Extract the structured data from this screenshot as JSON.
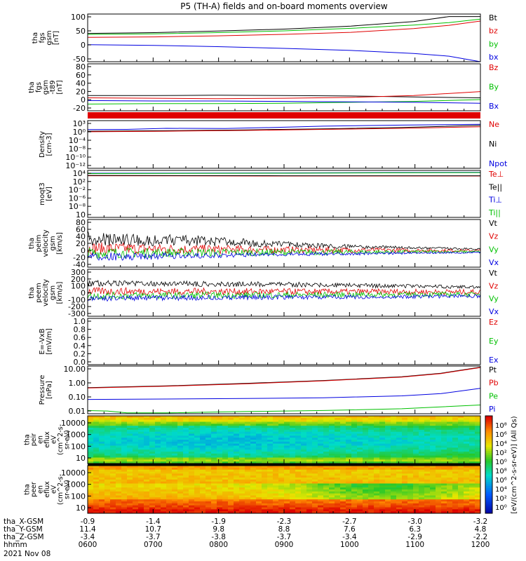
{
  "title": "P5 (TH-A) fields and on-board moments overview",
  "date": "2021 Nov 08",
  "colors": {
    "black": "#000000",
    "red": "#e00000",
    "green": "#00c000",
    "blue": "#0000e0"
  },
  "chart_data": {
    "type": "line",
    "x_ticks": [
      "0600",
      "0700",
      "0800",
      "0900",
      "1000",
      "1100",
      "1200"
    ],
    "panels": [
      {
        "id": "fgs",
        "ylabel": [
          "tha",
          "fgs",
          "gsm",
          "[nT]"
        ],
        "yticks": [
          "100",
          "50",
          "0",
          "-50"
        ],
        "ylim": [
          -80,
          110
        ],
        "legend": [
          {
            "t": "Bt",
            "c": "black"
          },
          {
            "t": "bz",
            "c": "red"
          },
          {
            "t": "by",
            "c": "green"
          },
          {
            "t": "bx",
            "c": "blue"
          }
        ],
        "series": [
          {
            "name": "Bt",
            "color": "black",
            "x": [
              0,
              0.17,
              0.33,
              0.5,
              0.67,
              0.83,
              0.92,
              1
            ],
            "y": [
              33,
              36,
              42,
              50,
              62,
              80,
              100,
              100
            ]
          },
          {
            "name": "bz",
            "color": "red",
            "x": [
              0,
              0.17,
              0.33,
              0.5,
              0.67,
              0.83,
              0.92,
              1
            ],
            "y": [
              17,
              19,
              23,
              29,
              37,
              52,
              65,
              82
            ]
          },
          {
            "name": "by",
            "color": "green",
            "x": [
              0,
              0.17,
              0.33,
              0.5,
              0.67,
              0.83,
              0.92,
              1
            ],
            "y": [
              29,
              31,
              36,
              43,
              53,
              66,
              76,
              90
            ]
          },
          {
            "name": "bx",
            "color": "blue",
            "x": [
              0,
              0.17,
              0.33,
              0.5,
              0.67,
              0.83,
              0.92,
              1
            ],
            "y": [
              -12,
              -15,
              -20,
              -27,
              -35,
              -47,
              -58,
              -80
            ]
          }
        ]
      },
      {
        "id": "fgs-dsl",
        "ylabel": [
          "tha",
          "fgs",
          "gsm",
          "-t89",
          "[nT]"
        ],
        "yticks": [
          "80",
          "60",
          "40",
          "20",
          "0",
          "-20"
        ],
        "ylim": [
          -25,
          80
        ],
        "legend": [
          {
            "t": "Bz",
            "c": "red"
          },
          {
            "t": "By",
            "c": "green"
          },
          {
            "t": "Bx",
            "c": "blue"
          }
        ],
        "series": [
          {
            "name": "Bt",
            "color": "black",
            "x": [
              0,
              0.17,
              0.33,
              0.5,
              0.67,
              0.83,
              1
            ],
            "y": [
              9,
              9,
              10,
              9,
              8,
              6,
              4
            ]
          },
          {
            "name": "Bz",
            "color": "red",
            "x": [
              0,
              0.17,
              0.33,
              0.5,
              0.67,
              0.83,
              1
            ],
            "y": [
              4,
              3,
              2,
              3,
              5,
              9,
              18
            ]
          },
          {
            "name": "By",
            "color": "green",
            "x": [
              0,
              0.17,
              0.33,
              0.5,
              0.67,
              0.83,
              1
            ],
            "y": [
              -10,
              -9,
              -9,
              -8,
              -6,
              -4,
              0
            ]
          },
          {
            "name": "Bx",
            "color": "blue",
            "x": [
              0,
              0.17,
              0.33,
              0.5,
              0.67,
              0.83,
              1
            ],
            "y": [
              -2,
              -3,
              -3,
              -4,
              -5,
              -6,
              -8
            ]
          }
        ]
      },
      {
        "id": "density",
        "ylabel": [
          "Density",
          "[cm-3]"
        ],
        "yticks": [
          "10³",
          "10⁰",
          "10⁻⁴",
          "10⁻⁸",
          "10⁻¹⁰",
          "10⁻¹²"
        ],
        "ylim": [
          -14,
          4
        ],
        "legend": [
          {
            "t": "Ne",
            "c": "red"
          },
          {
            "t": "Ni",
            "c": "black"
          },
          {
            "t": "Npot",
            "c": "blue"
          }
        ],
        "series": [
          {
            "name": "Npot",
            "color": "blue",
            "x": [
              0,
              0.1,
              0.2,
              0.35,
              0.5,
              0.6,
              0.8,
              1
            ],
            "y": [
              0.6,
              0.7,
              1.1,
              1.0,
              1.5,
              1.9,
              2.3,
              2.6
            ]
          },
          {
            "name": "Ni",
            "color": "black",
            "x": [
              0,
              0.2,
              0.4,
              0.6,
              0.8,
              1
            ],
            "y": [
              0.0,
              0.2,
              0.5,
              0.9,
              1.4,
              2.2
            ]
          },
          {
            "name": "Ne",
            "color": "red",
            "x": [
              0,
              0.2,
              0.4,
              0.6,
              0.8,
              1
            ],
            "y": [
              -0.2,
              0.0,
              0.3,
              0.7,
              1.1,
              1.7
            ]
          }
        ]
      },
      {
        "id": "temp",
        "ylabel": [
          "moqt3",
          "[eV]"
        ],
        "yticks": [
          "10⁴",
          "10²",
          "10⁻²",
          "10⁻⁶",
          "10⁻⁸",
          "10"
        ],
        "ylim": [
          -10,
          5
        ],
        "legend": [
          {
            "t": "Te⊥",
            "c": "red"
          },
          {
            "t": "Te||",
            "c": "black"
          },
          {
            "t": "Ti⊥",
            "c": "blue"
          },
          {
            "t": "Ti||",
            "c": "green"
          }
        ],
        "series": [
          {
            "name": "Te⊥",
            "color": "red",
            "x": [
              0,
              0.5,
              1
            ],
            "y": [
              3.3,
              3.2,
              3.2
            ]
          },
          {
            "name": "Te||",
            "color": "black",
            "x": [
              0,
              0.5,
              1
            ],
            "y": [
              3.4,
              3.3,
              3.3
            ]
          },
          {
            "name": "Ti⊥",
            "color": "blue",
            "x": [
              0,
              0.5,
              1
            ],
            "y": [
              4.1,
              4.2,
              4.4
            ]
          },
          {
            "name": "Ti||",
            "color": "green",
            "x": [
              0,
              0.5,
              1
            ],
            "y": [
              4.0,
              4.1,
              4.3
            ]
          }
        ]
      },
      {
        "id": "peim",
        "ylabel": [
          "tha",
          "peim",
          "velocity",
          "gsm",
          "[km/s]"
        ],
        "yticks": [
          "80",
          "60",
          "40",
          "20",
          "0",
          "-20",
          "-40"
        ],
        "ylim": [
          -45,
          90
        ],
        "legend": [
          {
            "t": "Vt",
            "c": "black"
          },
          {
            "t": "Vz",
            "c": "red"
          },
          {
            "t": "Vy",
            "c": "green"
          },
          {
            "t": "Vx",
            "c": "blue"
          }
        ],
        "noisy": true,
        "series": [
          {
            "name": "Vt",
            "color": "black",
            "base": [
              [
                0,
                22
              ],
              [
                0.3,
                20
              ],
              [
                0.55,
                12
              ],
              [
                0.75,
                8
              ],
              [
                1,
                5
              ]
            ],
            "amp": [
              [
                0,
                40
              ],
              [
                0.3,
                25
              ],
              [
                0.6,
                12
              ],
              [
                1,
                4
              ]
            ],
            "sign": 1
          },
          {
            "name": "Vz",
            "color": "red",
            "base": [
              [
                0,
                8
              ],
              [
                0.5,
                4
              ],
              [
                1,
                2
              ]
            ],
            "amp": [
              [
                0,
                18
              ],
              [
                0.5,
                10
              ],
              [
                1,
                3
              ]
            ],
            "sign": 0
          },
          {
            "name": "Vy",
            "color": "green",
            "base": [
              [
                0,
                -5
              ],
              [
                0.5,
                -3
              ],
              [
                1,
                -1
              ]
            ],
            "amp": [
              [
                0,
                16
              ],
              [
                0.5,
                9
              ],
              [
                1,
                3
              ]
            ],
            "sign": 0
          },
          {
            "name": "Vx",
            "color": "blue",
            "base": [
              [
                0,
                -8
              ],
              [
                0.5,
                -5
              ],
              [
                1,
                -2
              ]
            ],
            "amp": [
              [
                0,
                22
              ],
              [
                0.5,
                10
              ],
              [
                1,
                4
              ]
            ],
            "sign": -1
          }
        ]
      },
      {
        "id": "peem",
        "ylabel": [
          "tha",
          "peem",
          "velocity",
          "gsm",
          "[km/s]"
        ],
        "yticks": [
          "300",
          "200",
          "100",
          "0",
          "-100",
          "-200",
          "-300"
        ],
        "ylim": [
          -310,
          310
        ],
        "legend": [
          {
            "t": "Vt",
            "c": "black"
          },
          {
            "t": "Vz",
            "c": "red"
          },
          {
            "t": "Vy",
            "c": "green"
          },
          {
            "t": "Vx",
            "c": "blue"
          }
        ],
        "noisy": true,
        "series": [
          {
            "name": "Vt",
            "color": "black",
            "base": [
              [
                0,
                100
              ],
              [
                0.5,
                90
              ],
              [
                1,
                60
              ]
            ],
            "amp": [
              [
                0,
                70
              ],
              [
                0.5,
                60
              ],
              [
                1,
                40
              ]
            ],
            "sign": 1
          },
          {
            "name": "Vz",
            "color": "red",
            "base": [
              [
                0,
                20
              ],
              [
                1,
                10
              ]
            ],
            "amp": [
              [
                0,
                50
              ],
              [
                1,
                35
              ]
            ],
            "sign": 0
          },
          {
            "name": "Vy",
            "color": "green",
            "base": [
              [
                0,
                -40
              ],
              [
                1,
                -20
              ]
            ],
            "amp": [
              [
                0,
                50
              ],
              [
                1,
                30
              ]
            ],
            "sign": 0
          },
          {
            "name": "Vx",
            "color": "blue",
            "base": [
              [
                0,
                -50
              ],
              [
                1,
                -30
              ]
            ],
            "amp": [
              [
                0,
                70
              ],
              [
                1,
                40
              ]
            ],
            "sign": -1
          }
        ]
      },
      {
        "id": "efield",
        "ylabel": [
          "E=-VxB",
          "[mV/m]"
        ],
        "yticks": [
          "1.0",
          "0.8",
          "0.6",
          "0.4",
          "0.2",
          "0.0"
        ],
        "ylim": [
          0,
          1
        ],
        "legend": [
          {
            "t": "Ez",
            "c": "red"
          },
          {
            "t": "Ey",
            "c": "green"
          },
          {
            "t": "Ex",
            "c": "blue"
          }
        ],
        "series": []
      },
      {
        "id": "pressure",
        "ylabel": [
          "Pressure",
          "[nPa]"
        ],
        "yticks": [
          "10.00",
          "1.00",
          "0.10",
          "0.01"
        ],
        "ylim": [
          -2.1,
          1.05
        ],
        "log": true,
        "legend": [
          {
            "t": "Pt",
            "c": "black"
          },
          {
            "t": "Pb",
            "c": "red"
          },
          {
            "t": "Pe",
            "c": "green"
          },
          {
            "t": "Pi",
            "c": "blue"
          }
        ],
        "series": [
          {
            "name": "Pt",
            "color": "black",
            "x": [
              0,
              0.2,
              0.4,
              0.6,
              0.8,
              0.9,
              1
            ],
            "y": [
              0.42,
              0.55,
              0.8,
              1.25,
              2.2,
              3.8,
              9.5
            ]
          },
          {
            "name": "Pb",
            "color": "red",
            "x": [
              0,
              0.2,
              0.4,
              0.6,
              0.8,
              0.9,
              1
            ],
            "y": [
              0.4,
              0.52,
              0.75,
              1.18,
              2.1,
              3.6,
              9.0
            ]
          },
          {
            "name": "Pi",
            "color": "blue",
            "x": [
              0,
              0.2,
              0.4,
              0.6,
              0.8,
              0.9,
              1
            ],
            "y": [
              0.07,
              0.075,
              0.08,
              0.09,
              0.12,
              0.17,
              0.38
            ]
          },
          {
            "name": "Pe",
            "color": "green",
            "x": [
              0,
              0.05,
              0.1,
              0.2,
              0.4,
              0.6,
              0.8,
              1
            ],
            "y": [
              0.013,
              0.012,
              0.009,
              0.009,
              0.011,
              0.013,
              0.017,
              0.03
            ]
          }
        ]
      }
    ],
    "spectrograms": [
      {
        "id": "peir",
        "ylabel": [
          "tha",
          "peir",
          "en",
          "eflux",
          "eV",
          "(cm^2-s-",
          "sr-eV)"
        ],
        "yticks": [
          "10000",
          "1000",
          "100",
          "10"
        ]
      },
      {
        "id": "peer",
        "ylabel": [
          "tha",
          "peer",
          "en",
          "eflux",
          "eV",
          "(cm^2-s-",
          "sr-eV)"
        ],
        "yticks": [
          "10000",
          "1000",
          "100",
          "10"
        ]
      }
    ],
    "colorbar": {
      "labels": [
        "10⁸",
        "10⁶",
        "10⁴",
        "10²",
        "10⁰"
      ],
      "unit": "[eV/(cm^2-s-sr-eV)] (All Qs)"
    },
    "ephemeris": [
      {
        "label": "tha_X-GSM",
        "values": [
          "-0.9",
          "-1.4",
          "-1.9",
          "-2.3",
          "-2.7",
          "-3.0",
          "-3.2"
        ]
      },
      {
        "label": "tha_Y-GSM",
        "values": [
          "11.4",
          "10.7",
          "9.8",
          "8.8",
          "7.6",
          "6.3",
          "4.8"
        ]
      },
      {
        "label": "tha_Z-GSM",
        "values": [
          "-3.4",
          "-3.7",
          "-3.8",
          "-3.7",
          "-3.4",
          "-2.9",
          "-2.2"
        ]
      },
      {
        "label": "hhmm",
        "values": [
          "0600",
          "0700",
          "0800",
          "0900",
          "1000",
          "1100",
          "1200"
        ]
      }
    ]
  }
}
